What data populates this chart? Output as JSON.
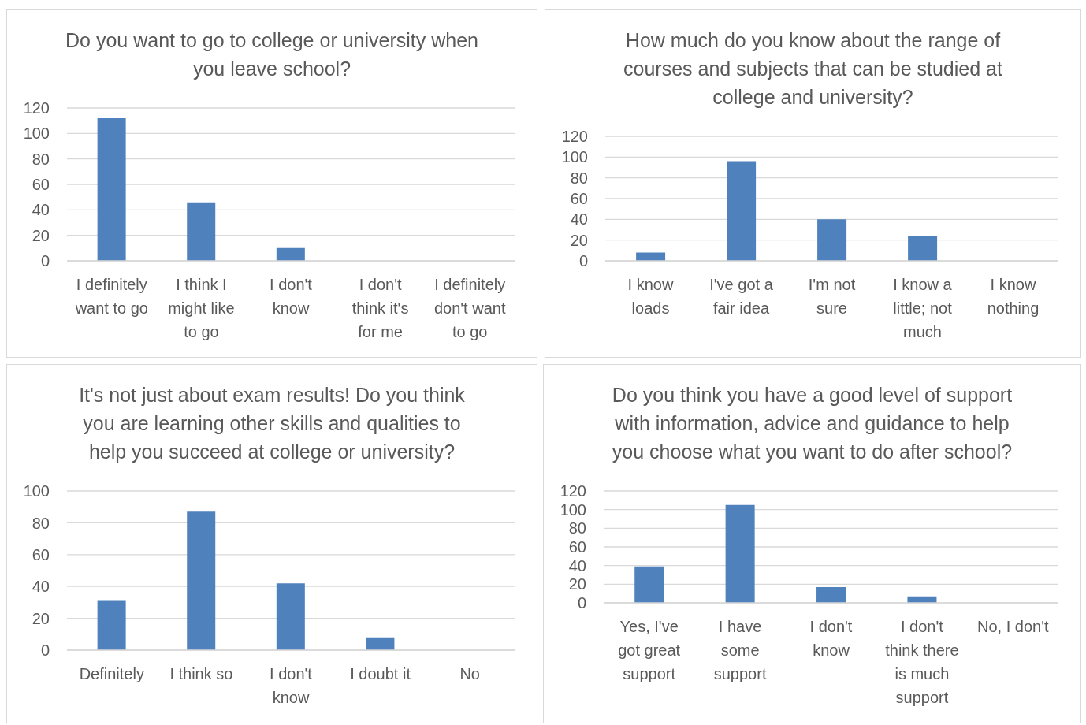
{
  "chart_data": [
    {
      "type": "bar",
      "title": "Do you want to go to college or university when you leave school?",
      "categories": [
        "I definitely want to go",
        "I think I might like to go",
        "I don't know",
        "I don't think it's for me",
        "I definitely don't want to go"
      ],
      "values": [
        112,
        46,
        10,
        0,
        0
      ],
      "color": "#4f81bd",
      "ylim": [
        0,
        120
      ],
      "yticks": [
        0,
        20,
        40,
        60,
        80,
        100,
        120
      ],
      "grid": "y"
    },
    {
      "type": "bar",
      "title": "How much do you know about the range of courses and subjects that can be studied at college and university?",
      "categories": [
        "I know loads",
        "I've got a fair idea",
        "I'm not sure",
        "I know a little; not much",
        "I know nothing"
      ],
      "values": [
        8,
        96,
        40,
        24,
        0
      ],
      "color": "#4f81bd",
      "ylim": [
        0,
        120
      ],
      "yticks": [
        0,
        20,
        40,
        60,
        80,
        100,
        120
      ],
      "grid": "y"
    },
    {
      "type": "bar",
      "title": "It's not just about exam results! Do you think you are learning other skills and qualities to help you succeed at college or university?",
      "categories": [
        "Definitely",
        "I think so",
        "I don't know",
        "I doubt it",
        "No"
      ],
      "values": [
        31,
        87,
        42,
        8,
        0
      ],
      "color": "#4f81bd",
      "ylim": [
        0,
        100
      ],
      "yticks": [
        0,
        20,
        40,
        60,
        80,
        100
      ],
      "grid": "y"
    },
    {
      "type": "bar",
      "title": "Do you think you have a good level of support with information, advice and guidance to help you choose what you want to do after school?",
      "categories": [
        "Yes, I've got great support",
        "I have some support",
        "I don't know",
        "I don't think there is much support",
        "No, I don't"
      ],
      "values": [
        39,
        105,
        17,
        7,
        0
      ],
      "color": "#4f81bd",
      "ylim": [
        0,
        120
      ],
      "yticks": [
        0,
        20,
        40,
        60,
        80,
        100,
        120
      ],
      "grid": "y"
    }
  ]
}
